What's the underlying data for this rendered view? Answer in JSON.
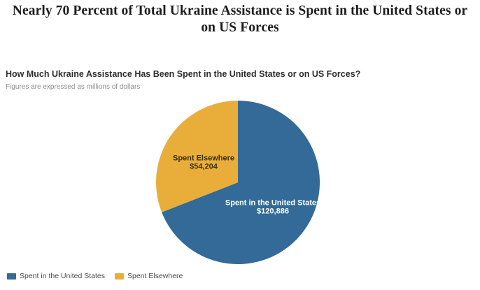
{
  "header": {
    "title": "Nearly 70 Percent of Total Ukraine Assistance is Spent in the United States or on US Forces"
  },
  "chart_data": {
    "type": "pie",
    "title": "How Much Ukraine Assistance Has Been Spent in the United States or on US Forces?",
    "note": "Figures are expressed as millions of dollars",
    "unit": "millions of dollars",
    "start_angle_deg": 0,
    "direction": "clockwise",
    "legend_position": "bottom-left",
    "slices": [
      {
        "label": "Spent in the United States",
        "value": 120886,
        "display_value": "$120,886",
        "percent": 69,
        "color": "#336A97",
        "text_color": "#FFFFFF"
      },
      {
        "label": "Spent Elsewhere",
        "value": 54204,
        "display_value": "$54,204",
        "percent": 31,
        "color": "#E9AE3A",
        "text_color": "#3A300F"
      }
    ]
  }
}
